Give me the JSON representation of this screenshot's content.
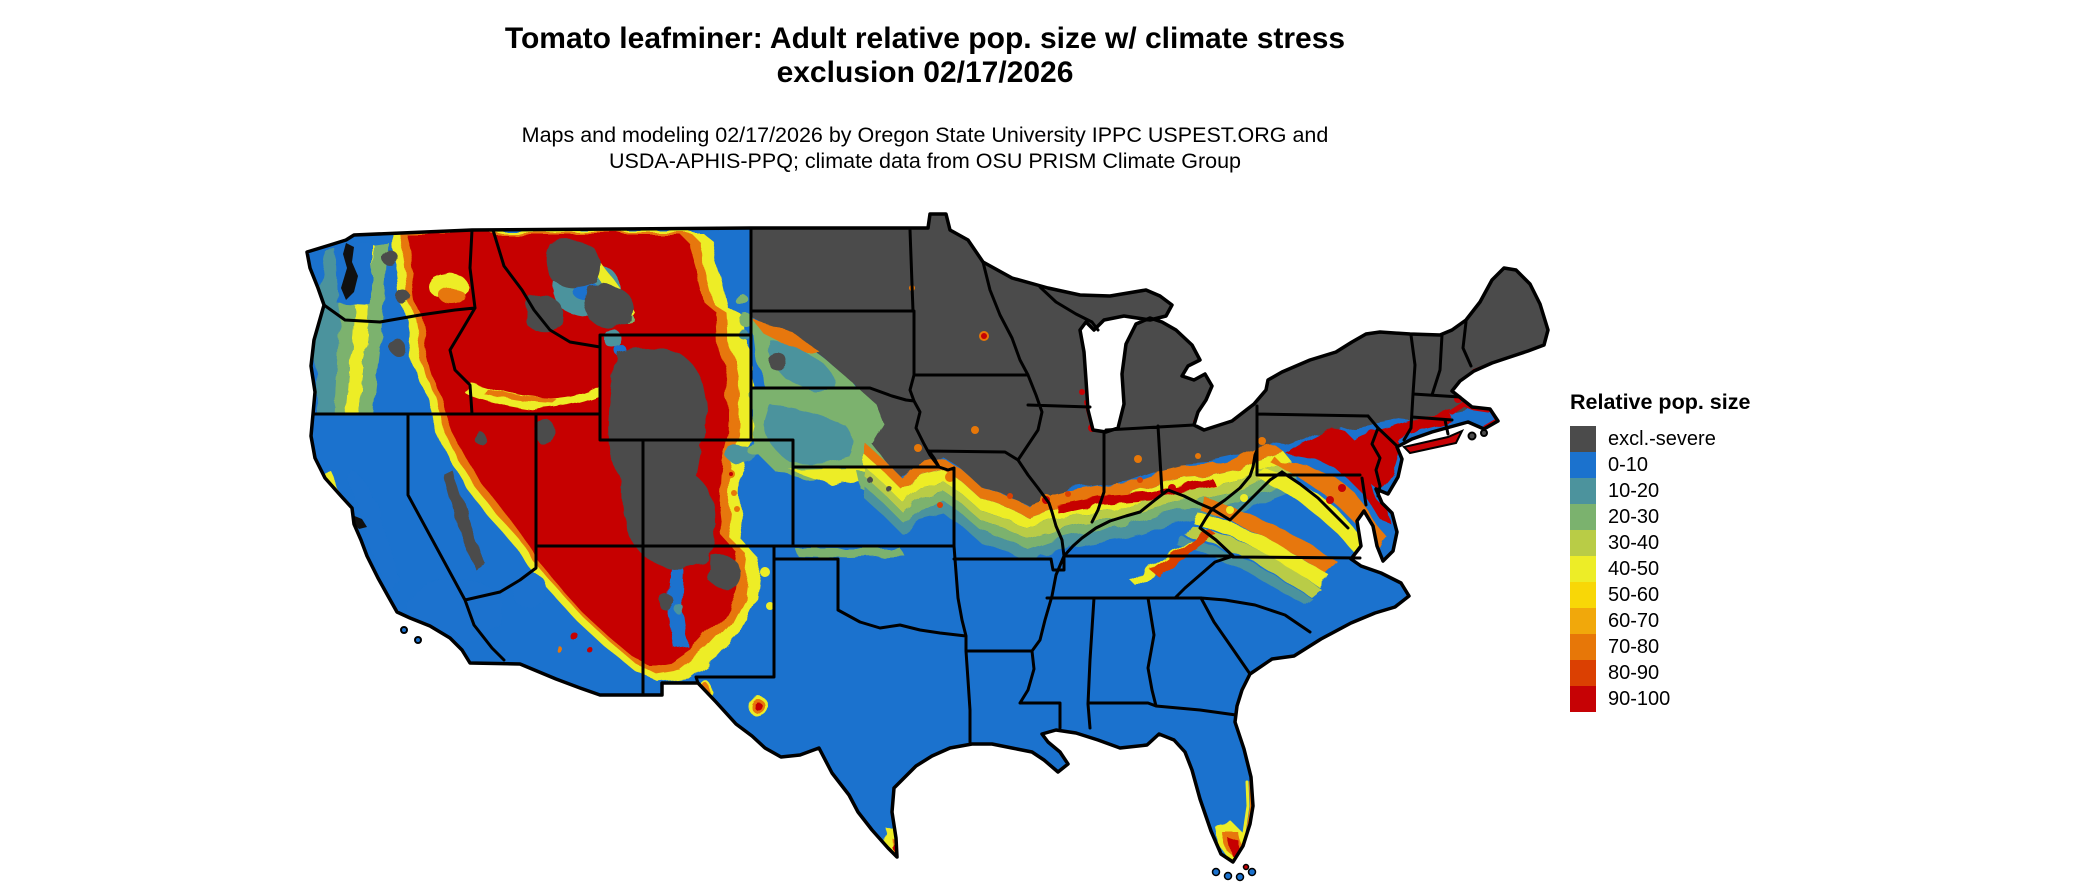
{
  "title": {
    "line1": "Tomato leafminer: Adult relative pop. size w/ climate stress",
    "line2": "exclusion 02/17/2026"
  },
  "subtitle": {
    "line1": "Maps and modeling 02/17/2026 by Oregon State University IPPC USPEST.ORG and",
    "line2": "USDA-APHIS-PPQ; climate data from OSU PRISM Climate Group"
  },
  "legend": {
    "title": "Relative pop. size",
    "items": [
      {
        "label": "excl.-severe",
        "color": "#4B4B4B"
      },
      {
        "label": "0-10",
        "color": "#1B72CE"
      },
      {
        "label": "10-20",
        "color": "#4C939D"
      },
      {
        "label": "20-30",
        "color": "#7BB26E"
      },
      {
        "label": "30-40",
        "color": "#B9CC46"
      },
      {
        "label": "40-50",
        "color": "#EDED27"
      },
      {
        "label": "50-60",
        "color": "#F8D707"
      },
      {
        "label": "60-70",
        "color": "#F1A80B"
      },
      {
        "label": "70-80",
        "color": "#E77708"
      },
      {
        "label": "80-90",
        "color": "#DB4002"
      },
      {
        "label": "90-100",
        "color": "#C60205"
      }
    ]
  },
  "map": {
    "region": "Continental United States",
    "border_color": "#000000",
    "water_ink": "#101010",
    "background": "#FFFFFF",
    "regions_shown": [
      "Northern plains, upper Midwest, Great Lakes and Northeast interior: excluded by severe climate stress (dark gray)",
      "Interior mountain West (eastern WA/OR, ID, MT, NV, UT, WY, western CO, northern NM/AZ): 70-100 relative pop. size (orange to red) with gray high-elevation exclusions",
      "California coast and valleys, Southwest deserts, southern plains, Gulf states and Southeast: 0-10 (blue)",
      "Transition band of 10-70 values across NE/KS/MO/IL/IN/OH valley, KY and VA piedmont (teal-green-yellow-orange)",
      "Mid-Atlantic coastal strip (SE PA, NJ, Long Island, Delmarva) and New England shoreline: 80-100 (red)",
      "Southern tips of Texas and Florida: 40-100 hot spots"
    ]
  }
}
